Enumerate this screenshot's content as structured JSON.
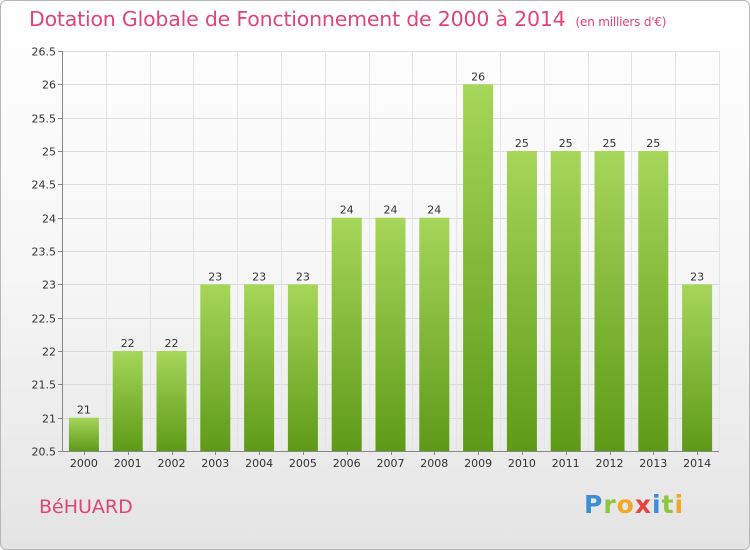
{
  "title": "Dotation Globale de Fonctionnement de 2000 à 2014",
  "subtitle": "(en milliers d'€)",
  "town": "BéHUARD",
  "logo": {
    "p": "P",
    "r": "r",
    "o": "o",
    "x": "x",
    "i": "i",
    "t": "t",
    "i2": "i"
  },
  "colors": {
    "bar_light": "#a6d65a",
    "bar_dark": "#5e9a18",
    "title": "#e0457a"
  },
  "chart_data": {
    "type": "bar",
    "title": "Dotation Globale de Fonctionnement de 2000 à 2014",
    "subtitle": "(en milliers d'€)",
    "categories": [
      "2000",
      "2001",
      "2002",
      "2003",
      "2004",
      "2005",
      "2006",
      "2007",
      "2008",
      "2009",
      "2010",
      "2011",
      "2012",
      "2013",
      "2014"
    ],
    "values": [
      21,
      22,
      22,
      23,
      23,
      23,
      24,
      24,
      24,
      26,
      25,
      25,
      25,
      25,
      23
    ],
    "ylim": [
      20.5,
      26.5
    ],
    "yticks": [
      "20.5",
      "21",
      "21.5",
      "22",
      "22.5",
      "23",
      "23.5",
      "24",
      "24.5",
      "25",
      "25.5",
      "26",
      "26.5"
    ],
    "grid": true,
    "legend": "none"
  }
}
